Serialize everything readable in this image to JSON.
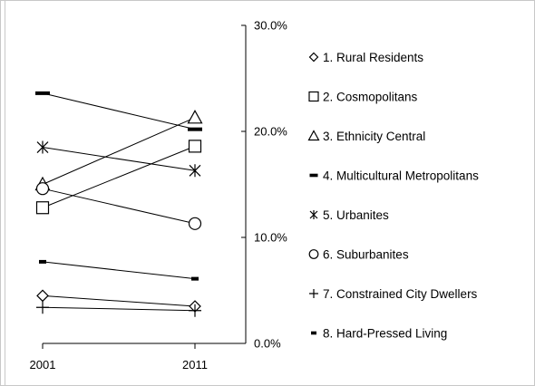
{
  "chart_data": {
    "type": "line",
    "x": [
      "2001",
      "2011"
    ],
    "y_ticks": [
      "0.0%",
      "10.0%",
      "20.0%",
      "30.0%"
    ],
    "ylim": [
      0,
      30
    ],
    "grid": false,
    "legend_position": "right",
    "series": [
      {
        "name": "1. Rural Residents",
        "marker": "diamond",
        "values": [
          4.5,
          3.5
        ]
      },
      {
        "name": "2. Cosmopolitans",
        "marker": "square",
        "values": [
          12.8,
          18.6
        ]
      },
      {
        "name": "3. Ethnicity Central",
        "marker": "triangle",
        "values": [
          15.0,
          21.3
        ]
      },
      {
        "name": "4. Multicultural Metropolitans",
        "marker": "dash",
        "values": [
          23.6,
          20.2
        ]
      },
      {
        "name": "5. Urbanites",
        "marker": "asterisk",
        "values": [
          18.5,
          16.3
        ]
      },
      {
        "name": "6. Suburbanites",
        "marker": "circle",
        "values": [
          14.6,
          11.3
        ]
      },
      {
        "name": "7. Constrained City Dwellers",
        "marker": "plus",
        "values": [
          3.4,
          3.1
        ]
      },
      {
        "name": "8. Hard-Pressed Living",
        "marker": "smalldash",
        "values": [
          7.7,
          6.1
        ]
      }
    ]
  }
}
